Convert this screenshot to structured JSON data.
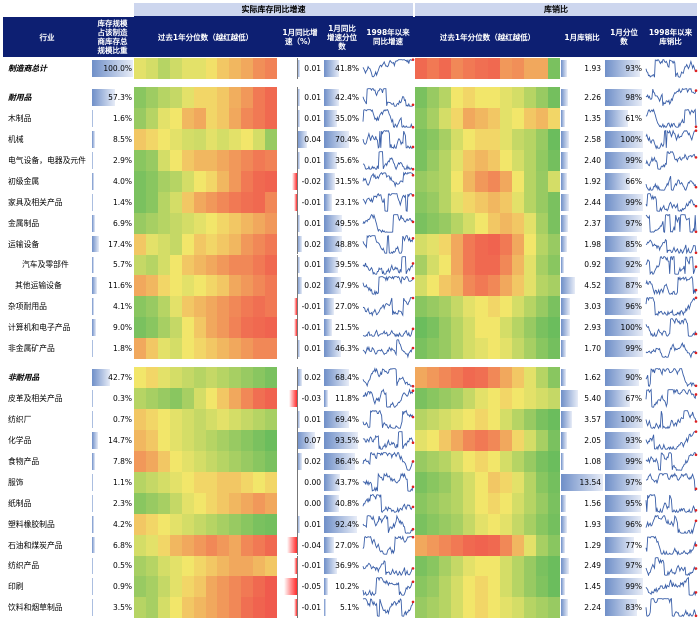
{
  "header": {
    "industry": "行业",
    "share": "库存规模占该制造商库存总规模比重",
    "group_inventory": "实际库存同比增速",
    "group_ratio": "库销比",
    "past_year_quantile": "过去1年分位数（越红越低）",
    "month_yoy": "1月同比增速（%）",
    "month_yoy_quantile": "1月同比增速分位数",
    "since1998_yoy": "1998年以来同比增速",
    "past_year_quantile_ratio": "过去1年分位数（越红越低）",
    "month_ratio": "1月库销比",
    "month_ratio_quantile": "1月分位数",
    "since1998_ratio": "1998年以来库销比"
  },
  "chart_data": {
    "type": "table",
    "colors": {
      "green": "#5cb85c",
      "yellow": "#f2e66a",
      "red": "#f04a4a",
      "header": "#0d1f72",
      "group": "#cdd6ee"
    },
    "rows": [
      {
        "name": "制造商总计",
        "style": "bi",
        "share": "100.0%",
        "share_v": 100,
        "yoy": "0.01",
        "yoy_v": 0.01,
        "q1": "41.8%",
        "q1_v": 41.8,
        "ratio": "1.93",
        "ratio_v": 1.93,
        "q2": "93%",
        "q2_v": 93,
        "heat1": [
          0.55,
          0.6,
          0.7,
          0.62,
          0.55,
          0.55,
          0.48,
          0.4,
          0.35,
          0.3,
          0.22,
          0.18
        ],
        "heat2": [
          0.1,
          0.15,
          0.1,
          0.2,
          0.15,
          0.12,
          0.1,
          0.25,
          0.22,
          0.3,
          0.3,
          0.9
        ]
      },
      {
        "gap": true
      },
      {
        "name": "耐用品",
        "style": "bi",
        "share": "57.3%",
        "share_v": 57.3,
        "yoy": "0.01",
        "yoy_v": 0.01,
        "q1": "42.4%",
        "q1_v": 42.4,
        "ratio": "2.26",
        "ratio_v": 2.26,
        "q2": "98%",
        "q2_v": 98,
        "heat1": [
          0.85,
          0.78,
          0.7,
          0.65,
          0.55,
          0.45,
          0.45,
          0.4,
          0.32,
          0.25,
          0.15,
          0.1
        ],
        "heat2": [
          0.9,
          0.8,
          0.7,
          0.5,
          0.45,
          0.5,
          0.5,
          0.55,
          0.6,
          0.7,
          0.8,
          0.92
        ]
      },
      {
        "name": "木制品",
        "style": "n",
        "share": "1.6%",
        "share_v": 1.6,
        "yoy": "0.01",
        "yoy_v": 0.01,
        "q1": "35.0%",
        "q1_v": 35.0,
        "ratio": "1.35",
        "ratio_v": 1.35,
        "q2": "61%",
        "q2_v": 61,
        "heat1": [
          0.8,
          0.7,
          0.55,
          0.5,
          0.35,
          0.3,
          0.45,
          0.4,
          0.3,
          0.2,
          0.15,
          0.1
        ],
        "heat2": [
          0.85,
          0.75,
          0.6,
          0.45,
          0.3,
          0.35,
          0.4,
          0.55,
          0.5,
          0.4,
          0.35,
          0.45
        ]
      },
      {
        "name": "机械",
        "style": "n",
        "share": "8.5%",
        "share_v": 8.5,
        "yoy": "0.04",
        "yoy_v": 0.04,
        "q1": "70.4%",
        "q1_v": 70.4,
        "ratio": "2.58",
        "ratio_v": 2.58,
        "q2": "100%",
        "q2_v": 100,
        "heat1": [
          0.4,
          0.45,
          0.5,
          0.55,
          0.6,
          0.62,
          0.55,
          0.6,
          0.55,
          0.5,
          0.6,
          0.8
        ],
        "heat2": [
          0.9,
          0.85,
          0.75,
          0.6,
          0.5,
          0.45,
          0.45,
          0.55,
          0.65,
          0.7,
          0.8,
          0.95
        ]
      },
      {
        "name": "电气设备，电器及元件",
        "style": "n",
        "share": "2.9%",
        "share_v": 2.9,
        "yoy": "0.01",
        "yoy_v": 0.01,
        "q1": "35.6%",
        "q1_v": 35.6,
        "ratio": "2.40",
        "ratio_v": 2.4,
        "q2": "99%",
        "q2_v": 99,
        "heat1": [
          0.85,
          0.8,
          0.6,
          0.5,
          0.4,
          0.35,
          0.35,
          0.3,
          0.25,
          0.2,
          0.15,
          0.18
        ],
        "heat2": [
          0.9,
          0.8,
          0.7,
          0.55,
          0.4,
          0.35,
          0.4,
          0.5,
          0.6,
          0.7,
          0.82,
          0.92
        ]
      },
      {
        "name": "初级金属",
        "style": "n",
        "share": "4.0%",
        "share_v": 4.0,
        "yoy": "-0.02",
        "yoy_v": -0.02,
        "q1": "31.5%",
        "q1_v": 31.5,
        "ratio": "1.92",
        "ratio_v": 1.92,
        "q2": "66%",
        "q2_v": 66,
        "heat1": [
          0.9,
          0.85,
          0.75,
          0.7,
          0.6,
          0.5,
          0.45,
          0.35,
          0.25,
          0.15,
          0.1,
          0.08
        ],
        "heat2": [
          0.8,
          0.75,
          0.7,
          0.5,
          0.35,
          0.25,
          0.2,
          0.3,
          0.5,
          0.7,
          0.8,
          0.6
        ]
      },
      {
        "name": "家具及相关产品",
        "style": "n",
        "share": "1.4%",
        "share_v": 1.4,
        "yoy": "-0.01",
        "yoy_v": -0.01,
        "q1": "23.1%",
        "q1_v": 23.1,
        "ratio": "2.44",
        "ratio_v": 2.44,
        "q2": "99%",
        "q2_v": 99,
        "heat1": [
          0.9,
          0.85,
          0.7,
          0.6,
          0.4,
          0.3,
          0.25,
          0.2,
          0.15,
          0.12,
          0.1,
          0.2
        ],
        "heat2": [
          0.85,
          0.8,
          0.7,
          0.55,
          0.45,
          0.4,
          0.35,
          0.4,
          0.55,
          0.7,
          0.8,
          0.9
        ]
      },
      {
        "name": "金属制品",
        "style": "n",
        "share": "6.9%",
        "share_v": 6.9,
        "yoy": "0.01",
        "yoy_v": 0.01,
        "q1": "49.5%",
        "q1_v": 49.5,
        "ratio": "2.37",
        "ratio_v": 2.37,
        "q2": "97%",
        "q2_v": 97,
        "heat1": [
          0.8,
          0.75,
          0.7,
          0.65,
          0.6,
          0.55,
          0.5,
          0.45,
          0.4,
          0.35,
          0.3,
          0.25
        ],
        "heat2": [
          0.9,
          0.85,
          0.8,
          0.7,
          0.6,
          0.5,
          0.4,
          0.35,
          0.4,
          0.55,
          0.75,
          0.9
        ]
      },
      {
        "name": "运输设备",
        "style": "n",
        "share": "17.4%",
        "share_v": 17.4,
        "yoy": "0.02",
        "yoy_v": 0.02,
        "q1": "48.8%",
        "q1_v": 48.8,
        "ratio": "1.98",
        "ratio_v": 1.98,
        "q2": "85%",
        "q2_v": 85,
        "heat1": [
          0.4,
          0.55,
          0.6,
          0.65,
          0.5,
          0.4,
          0.45,
          0.4,
          0.35,
          0.25,
          0.2,
          0.15
        ],
        "heat2": [
          0.6,
          0.55,
          0.45,
          0.3,
          0.15,
          0.1,
          0.08,
          0.15,
          0.3,
          0.5,
          0.7,
          0.8
        ]
      },
      {
        "name": "汽车及零部件",
        "style": "i1",
        "share": "5.7%",
        "share_v": 5.7,
        "yoy": "0.01",
        "yoy_v": 0.01,
        "q1": "39.5%",
        "q1_v": 39.5,
        "ratio": "0.92",
        "ratio_v": 0.92,
        "q2": "92%",
        "q2_v": 92,
        "heat1": [
          0.65,
          0.7,
          0.6,
          0.5,
          0.4,
          0.35,
          0.3,
          0.25,
          0.2,
          0.2,
          0.15,
          0.1
        ],
        "heat2": [
          0.75,
          0.6,
          0.5,
          0.3,
          0.15,
          0.1,
          0.1,
          0.2,
          0.35,
          0.55,
          0.75,
          0.85
        ]
      },
      {
        "name": "其他运输设备",
        "style": "i2",
        "share": "11.6%",
        "share_v": 11.6,
        "yoy": "0.02",
        "yoy_v": 0.02,
        "q1": "47.9%",
        "q1_v": 47.9,
        "ratio": "4.52",
        "ratio_v": 4.52,
        "q2": "87%",
        "q2_v": 87,
        "heat1": [
          0.3,
          0.35,
          0.45,
          0.5,
          0.55,
          0.5,
          0.45,
          0.4,
          0.3,
          0.25,
          0.2,
          0.15
        ],
        "heat2": [
          0.6,
          0.5,
          0.4,
          0.35,
          0.2,
          0.15,
          0.2,
          0.3,
          0.4,
          0.55,
          0.7,
          0.75
        ]
      },
      {
        "name": "杂项耐用品",
        "style": "n",
        "share": "4.1%",
        "share_v": 4.1,
        "yoy": "-0.01",
        "yoy_v": -0.01,
        "q1": "27.0%",
        "q1_v": 27.0,
        "ratio": "3.03",
        "ratio_v": 3.03,
        "q2": "96%",
        "q2_v": 96,
        "heat1": [
          0.85,
          0.8,
          0.7,
          0.55,
          0.4,
          0.35,
          0.3,
          0.25,
          0.2,
          0.15,
          0.12,
          0.15
        ],
        "heat2": [
          0.85,
          0.8,
          0.75,
          0.65,
          0.55,
          0.5,
          0.45,
          0.5,
          0.6,
          0.7,
          0.8,
          0.9
        ]
      },
      {
        "name": "计算机和电子产品",
        "style": "n",
        "share": "9.0%",
        "share_v": 9.0,
        "yoy": "-0.01",
        "yoy_v": -0.01,
        "q1": "21.5%",
        "q1_v": 21.5,
        "ratio": "2.93",
        "ratio_v": 2.93,
        "q2": "100%",
        "q2_v": 100,
        "heat1": [
          0.9,
          0.85,
          0.75,
          0.65,
          0.5,
          0.4,
          0.3,
          0.25,
          0.18,
          0.12,
          0.1,
          0.08
        ],
        "heat2": [
          0.95,
          0.9,
          0.8,
          0.7,
          0.6,
          0.5,
          0.5,
          0.6,
          0.7,
          0.8,
          0.9,
          0.95
        ]
      },
      {
        "name": "非金属矿产品",
        "style": "n",
        "share": "1.8%",
        "share_v": 1.8,
        "yoy": "0.01",
        "yoy_v": 0.01,
        "q1": "46.3%",
        "q1_v": 46.3,
        "ratio": "1.70",
        "ratio_v": 1.7,
        "q2": "99%",
        "q2_v": 99,
        "heat1": [
          0.3,
          0.4,
          0.55,
          0.6,
          0.5,
          0.45,
          0.4,
          0.35,
          0.3,
          0.25,
          0.2,
          0.2
        ],
        "heat2": [
          0.9,
          0.85,
          0.8,
          0.7,
          0.6,
          0.55,
          0.5,
          0.55,
          0.65,
          0.75,
          0.85,
          0.92
        ]
      },
      {
        "gap": true
      },
      {
        "name": "非耐用品",
        "style": "bi",
        "share": "42.7%",
        "share_v": 42.7,
        "yoy": "0.02",
        "yoy_v": 0.02,
        "q1": "68.4%",
        "q1_v": 68.4,
        "ratio": "1.62",
        "ratio_v": 1.62,
        "q2": "90%",
        "q2_v": 90,
        "heat1": [
          0.5,
          0.45,
          0.55,
          0.6,
          0.65,
          0.7,
          0.65,
          0.7,
          0.75,
          0.8,
          0.85,
          0.9
        ],
        "heat2": [
          0.3,
          0.25,
          0.2,
          0.15,
          0.1,
          0.12,
          0.2,
          0.3,
          0.4,
          0.55,
          0.7,
          0.85
        ]
      },
      {
        "name": "皮革及相关产品",
        "style": "n",
        "share": "0.3%",
        "share_v": 0.3,
        "yoy": "-0.03",
        "yoy_v": -0.03,
        "q1": "11.8%",
        "q1_v": 11.8,
        "ratio": "5.40",
        "ratio_v": 5.4,
        "q2": "67%",
        "q2_v": 67,
        "heat1": [
          0.7,
          0.75,
          0.8,
          0.85,
          0.75,
          0.6,
          0.5,
          0.4,
          0.3,
          0.2,
          0.12,
          0.08
        ],
        "heat2": [
          0.9,
          0.85,
          0.8,
          0.75,
          0.65,
          0.55,
          0.5,
          0.45,
          0.5,
          0.55,
          0.6,
          0.65
        ]
      },
      {
        "name": "纺织厂",
        "style": "n",
        "share": "0.7%",
        "share_v": 0.7,
        "yoy": "0.01",
        "yoy_v": 0.01,
        "q1": "69.4%",
        "q1_v": 69.4,
        "ratio": "3.57",
        "ratio_v": 3.57,
        "q2": "100%",
        "q2_v": 100,
        "heat1": [
          0.4,
          0.45,
          0.5,
          0.55,
          0.6,
          0.65,
          0.6,
          0.55,
          0.6,
          0.65,
          0.7,
          0.75
        ],
        "heat2": [
          0.7,
          0.65,
          0.6,
          0.55,
          0.5,
          0.45,
          0.5,
          0.6,
          0.7,
          0.8,
          0.9,
          0.95
        ]
      },
      {
        "name": "化学品",
        "style": "n",
        "share": "14.7%",
        "share_v": 14.7,
        "yoy": "0.07",
        "yoy_v": 0.07,
        "q1": "93.5%",
        "q1_v": 93.5,
        "ratio": "2.05",
        "ratio_v": 2.05,
        "q2": "93%",
        "q2_v": 93,
        "heat1": [
          0.35,
          0.4,
          0.5,
          0.55,
          0.6,
          0.65,
          0.7,
          0.75,
          0.8,
          0.85,
          0.9,
          0.95
        ],
        "heat2": [
          0.55,
          0.5,
          0.4,
          0.3,
          0.2,
          0.15,
          0.2,
          0.3,
          0.45,
          0.6,
          0.75,
          0.9
        ]
      },
      {
        "name": "食物产品",
        "style": "n",
        "share": "7.8%",
        "share_v": 7.8,
        "yoy": "0.02",
        "yoy_v": 0.02,
        "q1": "86.4%",
        "q1_v": 86.4,
        "ratio": "1.08",
        "ratio_v": 1.08,
        "q2": "99%",
        "q2_v": 99,
        "heat1": [
          0.25,
          0.3,
          0.4,
          0.5,
          0.55,
          0.6,
          0.65,
          0.7,
          0.75,
          0.8,
          0.85,
          0.9
        ],
        "heat2": [
          0.8,
          0.75,
          0.7,
          0.6,
          0.5,
          0.45,
          0.5,
          0.6,
          0.7,
          0.8,
          0.9,
          0.95
        ]
      },
      {
        "name": "服饰",
        "style": "n",
        "share": "1.1%",
        "share_v": 1.1,
        "yoy": "0.00",
        "yoy_v": 0.0,
        "q1": "43.7%",
        "q1_v": 43.7,
        "ratio": "13.54",
        "ratio_v": 13.54,
        "q2": "97%",
        "q2_v": 97,
        "heat1": [
          0.7,
          0.65,
          0.6,
          0.55,
          0.5,
          0.45,
          0.45,
          0.4,
          0.4,
          0.45,
          0.5,
          0.45
        ],
        "heat2": [
          0.9,
          0.85,
          0.8,
          0.7,
          0.6,
          0.5,
          0.4,
          0.45,
          0.55,
          0.7,
          0.85,
          0.92
        ]
      },
      {
        "name": "纸制品",
        "style": "n",
        "share": "2.3%",
        "share_v": 2.3,
        "yoy": "0.00",
        "yoy_v": 0.0,
        "q1": "40.8%",
        "q1_v": 40.8,
        "ratio": "1.56",
        "ratio_v": 1.56,
        "q2": "95%",
        "q2_v": 95,
        "heat1": [
          0.85,
          0.8,
          0.75,
          0.65,
          0.55,
          0.5,
          0.45,
          0.4,
          0.35,
          0.3,
          0.25,
          0.3
        ],
        "heat2": [
          0.85,
          0.8,
          0.75,
          0.7,
          0.6,
          0.5,
          0.45,
          0.5,
          0.6,
          0.7,
          0.8,
          0.9
        ]
      },
      {
        "name": "塑料橡胶制品",
        "style": "n",
        "share": "4.2%",
        "share_v": 4.2,
        "yoy": "0.01",
        "yoy_v": 0.01,
        "q1": "92.4%",
        "q1_v": 92.4,
        "ratio": "1.93",
        "ratio_v": 1.93,
        "q2": "96%",
        "q2_v": 96,
        "heat1": [
          0.4,
          0.45,
          0.5,
          0.55,
          0.6,
          0.65,
          0.7,
          0.75,
          0.8,
          0.85,
          0.9,
          0.92
        ],
        "heat2": [
          0.9,
          0.85,
          0.8,
          0.75,
          0.65,
          0.55,
          0.5,
          0.55,
          0.65,
          0.75,
          0.85,
          0.92
        ]
      },
      {
        "name": "石油和煤炭产品",
        "style": "n",
        "share": "6.8%",
        "share_v": 6.8,
        "yoy": "-0.04",
        "yoy_v": -0.04,
        "q1": "27.0%",
        "q1_v": 27.0,
        "ratio": "1.29",
        "ratio_v": 1.29,
        "q2": "77%",
        "q2_v": 77,
        "heat1": [
          0.6,
          0.55,
          0.45,
          0.35,
          0.3,
          0.25,
          0.2,
          0.25,
          0.3,
          0.2,
          0.15,
          0.1
        ],
        "heat2": [
          0.3,
          0.25,
          0.2,
          0.15,
          0.1,
          0.08,
          0.1,
          0.2,
          0.35,
          0.55,
          0.75,
          0.85
        ]
      },
      {
        "name": "纺织产品",
        "style": "n",
        "share": "0.5%",
        "share_v": 0.5,
        "yoy": "-0.01",
        "yoy_v": -0.01,
        "q1": "36.9%",
        "q1_v": 36.9,
        "ratio": "2.49",
        "ratio_v": 2.49,
        "q2": "97%",
        "q2_v": 97,
        "heat1": [
          0.75,
          0.7,
          0.6,
          0.55,
          0.5,
          0.45,
          0.4,
          0.35,
          0.3,
          0.3,
          0.35,
          0.4
        ],
        "heat2": [
          0.9,
          0.85,
          0.75,
          0.65,
          0.55,
          0.5,
          0.5,
          0.6,
          0.7,
          0.8,
          0.9,
          0.95
        ]
      },
      {
        "name": "印刷",
        "style": "n",
        "share": "0.9%",
        "share_v": 0.9,
        "yoy": "-0.05",
        "yoy_v": -0.05,
        "q1": "10.2%",
        "q1_v": 10.2,
        "ratio": "1.45",
        "ratio_v": 1.45,
        "q2": "99%",
        "q2_v": 99,
        "heat1": [
          0.8,
          0.75,
          0.65,
          0.55,
          0.45,
          0.4,
          0.3,
          0.25,
          0.2,
          0.15,
          0.1,
          0.05
        ],
        "heat2": [
          0.85,
          0.8,
          0.7,
          0.6,
          0.5,
          0.45,
          0.5,
          0.6,
          0.7,
          0.8,
          0.88,
          0.95
        ]
      },
      {
        "name": "饮料和烟草制品",
        "style": "n",
        "share": "3.5%",
        "share_v": 3.5,
        "yoy": "-0.01",
        "yoy_v": -0.01,
        "q1": "5.1%",
        "q1_v": 5.1,
        "ratio": "2.24",
        "ratio_v": 2.24,
        "q2": "83%",
        "q2_v": 83,
        "heat1": [
          0.7,
          0.75,
          0.6,
          0.5,
          0.4,
          0.35,
          0.3,
          0.25,
          0.2,
          0.12,
          0.08,
          0.05
        ],
        "heat2": [
          0.8,
          0.75,
          0.7,
          0.6,
          0.5,
          0.45,
          0.5,
          0.55,
          0.6,
          0.7,
          0.75,
          0.8
        ]
      }
    ]
  }
}
